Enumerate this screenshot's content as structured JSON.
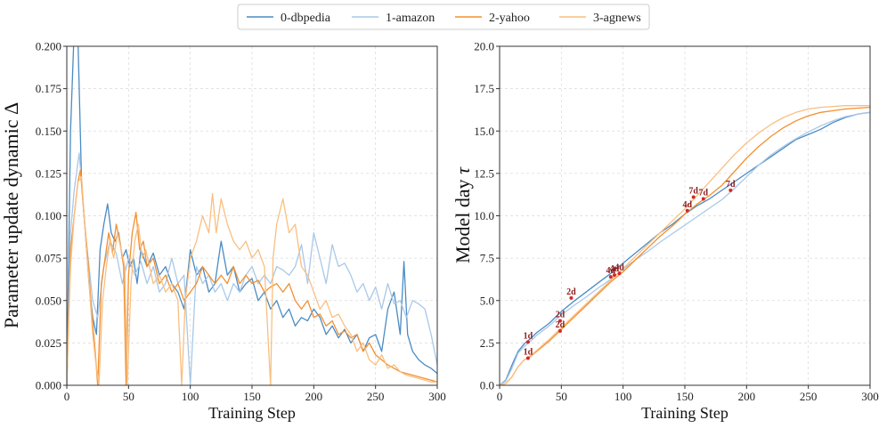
{
  "legend": {
    "entries": [
      {
        "label": "0-dbpedia",
        "color": "#4a8bc4"
      },
      {
        "label": "1-amazon",
        "color": "#a9c8e8"
      },
      {
        "label": "2-yahoo",
        "color": "#f28f2f"
      },
      {
        "label": "3-agnews",
        "color": "#f9bf80"
      }
    ]
  },
  "chart_data": [
    {
      "type": "line",
      "xlabel": "Training Step",
      "ylabel": "Parameter update dynamic Δ",
      "xlim": [
        0,
        300
      ],
      "ylim": [
        0,
        0.2
      ],
      "xticks": [
        "0",
        "50",
        "100",
        "150",
        "200",
        "250",
        "300"
      ],
      "yticks": [
        "0.000",
        "0.025",
        "0.050",
        "0.075",
        "0.100",
        "0.125",
        "0.150",
        "0.175",
        "0.200"
      ],
      "grid": true,
      "series": [
        {
          "name": "0-dbpedia",
          "color": "#4a8bc4",
          "x": [
            0,
            3,
            6,
            9,
            12,
            15,
            18,
            21,
            24,
            27,
            30,
            33,
            36,
            39,
            42,
            45,
            48,
            51,
            54,
            57,
            60,
            65,
            70,
            75,
            80,
            85,
            90,
            95,
            100,
            105,
            110,
            115,
            120,
            125,
            130,
            135,
            140,
            145,
            150,
            155,
            160,
            165,
            170,
            175,
            180,
            185,
            190,
            195,
            200,
            205,
            210,
            215,
            220,
            225,
            230,
            235,
            240,
            245,
            250,
            255,
            260,
            265,
            270,
            273,
            276,
            280,
            285,
            290,
            295,
            300
          ],
          "y": [
            0.0,
            0.15,
            0.21,
            0.205,
            0.12,
            0.09,
            0.06,
            0.04,
            0.03,
            0.08,
            0.095,
            0.107,
            0.09,
            0.085,
            0.09,
            0.075,
            0.08,
            0.07,
            0.075,
            0.06,
            0.08,
            0.07,
            0.078,
            0.065,
            0.07,
            0.06,
            0.055,
            0.045,
            0.08,
            0.065,
            0.07,
            0.055,
            0.06,
            0.085,
            0.065,
            0.07,
            0.055,
            0.06,
            0.063,
            0.05,
            0.055,
            0.045,
            0.05,
            0.04,
            0.045,
            0.035,
            0.04,
            0.038,
            0.045,
            0.04,
            0.03,
            0.035,
            0.028,
            0.033,
            0.025,
            0.03,
            0.02,
            0.028,
            0.03,
            0.02,
            0.045,
            0.055,
            0.03,
            0.073,
            0.03,
            0.02,
            0.015,
            0.012,
            0.01,
            0.007
          ]
        },
        {
          "name": "1-amazon",
          "color": "#a9c8e8",
          "x": [
            0,
            3,
            6,
            10,
            12,
            15,
            18,
            21,
            25,
            30,
            35,
            40,
            45,
            50,
            55,
            60,
            65,
            70,
            75,
            80,
            85,
            90,
            95,
            100,
            105,
            110,
            115,
            120,
            125,
            130,
            135,
            140,
            145,
            150,
            155,
            160,
            165,
            170,
            175,
            180,
            185,
            190,
            195,
            200,
            205,
            210,
            215,
            220,
            225,
            230,
            235,
            240,
            245,
            250,
            255,
            260,
            265,
            270,
            275,
            280,
            285,
            290,
            295,
            300
          ],
          "y": [
            0.0,
            0.09,
            0.115,
            0.137,
            0.12,
            0.09,
            0.07,
            0.05,
            0.04,
            0.07,
            0.085,
            0.078,
            0.06,
            0.075,
            0.065,
            0.073,
            0.06,
            0.07,
            0.055,
            0.06,
            0.075,
            0.06,
            0.065,
            0.0,
            0.07,
            0.06,
            0.065,
            0.055,
            0.06,
            0.05,
            0.06,
            0.055,
            0.065,
            0.07,
            0.06,
            0.065,
            0.06,
            0.07,
            0.068,
            0.065,
            0.07,
            0.083,
            0.06,
            0.09,
            0.075,
            0.06,
            0.083,
            0.07,
            0.072,
            0.065,
            0.055,
            0.06,
            0.05,
            0.058,
            0.045,
            0.06,
            0.048,
            0.05,
            0.04,
            0.05,
            0.048,
            0.045,
            0.03,
            0.012
          ]
        },
        {
          "name": "2-yahoo",
          "color": "#f28f2f",
          "x": [
            0,
            3,
            6,
            9,
            11,
            14,
            17,
            20,
            23,
            25,
            28,
            31,
            34,
            37,
            40,
            43,
            46,
            48,
            50,
            53,
            56,
            59,
            62,
            65,
            70,
            75,
            80,
            85,
            90,
            95,
            100,
            105,
            110,
            115,
            120,
            125,
            130,
            135,
            140,
            145,
            150,
            155,
            160,
            165,
            170,
            175,
            180,
            185,
            190,
            195,
            200,
            205,
            210,
            215,
            220,
            225,
            230,
            235,
            240,
            245,
            250,
            255,
            260,
            265,
            270,
            275,
            280,
            285,
            290,
            295,
            300
          ],
          "y": [
            0.0,
            0.08,
            0.1,
            0.12,
            0.127,
            0.1,
            0.075,
            0.045,
            0.02,
            0.0,
            0.06,
            0.075,
            0.09,
            0.078,
            0.095,
            0.085,
            0.07,
            0.0,
            0.065,
            0.09,
            0.102,
            0.08,
            0.085,
            0.07,
            0.075,
            0.06,
            0.065,
            0.055,
            0.06,
            0.05,
            0.055,
            0.06,
            0.07,
            0.065,
            0.06,
            0.065,
            0.06,
            0.07,
            0.06,
            0.065,
            0.06,
            0.062,
            0.055,
            0.058,
            0.06,
            0.055,
            0.06,
            0.05,
            0.045,
            0.05,
            0.04,
            0.042,
            0.035,
            0.038,
            0.03,
            0.032,
            0.028,
            0.03,
            0.02,
            0.025,
            0.018,
            0.015,
            0.012,
            0.01,
            0.008,
            0.007,
            0.006,
            0.005,
            0.004,
            0.003,
            0.002
          ]
        },
        {
          "name": "3-agnews",
          "color": "#f9bf80",
          "x": [
            0,
            3,
            6,
            9,
            12,
            15,
            18,
            21,
            24,
            26,
            29,
            32,
            35,
            38,
            41,
            44,
            47,
            49,
            52,
            55,
            58,
            61,
            64,
            67,
            70,
            75,
            80,
            85,
            90,
            93,
            96,
            100,
            105,
            110,
            115,
            118,
            121,
            125,
            130,
            135,
            140,
            145,
            150,
            155,
            160,
            165,
            167,
            170,
            175,
            180,
            185,
            190,
            195,
            200,
            205,
            210,
            215,
            220,
            225,
            230,
            235,
            240,
            245,
            250,
            255,
            260,
            265,
            270,
            275,
            280,
            285,
            290,
            295,
            300
          ],
          "y": [
            0.0,
            0.07,
            0.1,
            0.12,
            0.123,
            0.09,
            0.06,
            0.03,
            0.01,
            0.0,
            0.05,
            0.07,
            0.085,
            0.075,
            0.09,
            0.08,
            0.07,
            0.0,
            0.06,
            0.085,
            0.095,
            0.075,
            0.08,
            0.07,
            0.06,
            0.065,
            0.055,
            0.06,
            0.05,
            0.0,
            0.05,
            0.075,
            0.085,
            0.1,
            0.09,
            0.113,
            0.09,
            0.11,
            0.095,
            0.085,
            0.08,
            0.085,
            0.075,
            0.08,
            0.07,
            0.0,
            0.075,
            0.095,
            0.11,
            0.09,
            0.095,
            0.07,
            0.065,
            0.055,
            0.045,
            0.05,
            0.04,
            0.042,
            0.035,
            0.03,
            0.02,
            0.025,
            0.015,
            0.012,
            0.018,
            0.01,
            0.012,
            0.008,
            0.006,
            0.005,
            0.004,
            0.003,
            0.002,
            0.002
          ]
        }
      ]
    },
    {
      "type": "line",
      "xlabel": "Training Step",
      "ylabel": "Model day",
      "ylabel_symbol": "τ",
      "xlim": [
        0,
        300
      ],
      "ylim": [
        0,
        20
      ],
      "xticks": [
        "0",
        "50",
        "100",
        "150",
        "200",
        "250",
        "300"
      ],
      "yticks": [
        "0.0",
        "2.5",
        "5.0",
        "7.5",
        "10.0",
        "12.5",
        "15.0",
        "17.5",
        "20.0"
      ],
      "grid": true,
      "series": [
        {
          "name": "0-dbpedia",
          "color": "#4a8bc4",
          "x": [
            0,
            5,
            10,
            15,
            20,
            25,
            30,
            40,
            50,
            60,
            70,
            80,
            90,
            100,
            110,
            120,
            130,
            140,
            150,
            160,
            170,
            180,
            190,
            200,
            210,
            220,
            230,
            240,
            250,
            260,
            270,
            280,
            290,
            300
          ],
          "y": [
            0,
            0.3,
            1.2,
            2.0,
            2.45,
            2.75,
            3.1,
            3.65,
            4.35,
            4.95,
            5.5,
            6.05,
            6.6,
            7.2,
            7.8,
            8.4,
            9.0,
            9.5,
            10.1,
            10.6,
            11.0,
            11.5,
            12.0,
            12.5,
            13.0,
            13.5,
            14.0,
            14.5,
            14.8,
            15.1,
            15.5,
            15.8,
            16.0,
            16.1
          ]
        },
        {
          "name": "1-amazon",
          "color": "#a9c8e8",
          "x": [
            0,
            5,
            10,
            15,
            20,
            25,
            30,
            40,
            50,
            60,
            70,
            80,
            90,
            100,
            110,
            120,
            130,
            140,
            150,
            160,
            170,
            180,
            190,
            200,
            210,
            220,
            230,
            240,
            250,
            260,
            270,
            280,
            290,
            300
          ],
          "y": [
            0,
            0.25,
            1.0,
            1.9,
            2.3,
            2.6,
            2.95,
            3.5,
            4.15,
            4.7,
            5.2,
            5.75,
            6.25,
            6.85,
            7.4,
            7.9,
            8.45,
            8.95,
            9.45,
            9.95,
            10.45,
            10.95,
            11.6,
            12.3,
            13.0,
            13.6,
            14.1,
            14.55,
            14.95,
            15.3,
            15.6,
            15.85,
            16.0,
            16.1
          ]
        },
        {
          "name": "2-yahoo",
          "color": "#f28f2f",
          "x": [
            0,
            5,
            10,
            15,
            20,
            25,
            30,
            40,
            50,
            60,
            70,
            80,
            90,
            100,
            110,
            120,
            130,
            140,
            150,
            160,
            170,
            180,
            190,
            200,
            210,
            220,
            230,
            240,
            250,
            260,
            270,
            280,
            290,
            300
          ],
          "y": [
            0,
            0.1,
            0.5,
            1.1,
            1.5,
            1.7,
            2.0,
            2.6,
            3.3,
            4.0,
            4.7,
            5.4,
            6.1,
            6.7,
            7.4,
            8.1,
            8.8,
            9.4,
            10.1,
            10.7,
            11.2,
            11.8,
            12.6,
            13.4,
            14.1,
            14.7,
            15.2,
            15.6,
            15.9,
            16.1,
            16.2,
            16.3,
            16.35,
            16.4
          ]
        },
        {
          "name": "3-agnews",
          "color": "#f9bf80",
          "x": [
            0,
            5,
            10,
            15,
            20,
            25,
            30,
            40,
            50,
            60,
            70,
            80,
            90,
            100,
            110,
            120,
            130,
            140,
            150,
            160,
            170,
            180,
            190,
            200,
            210,
            220,
            230,
            240,
            250,
            260,
            270,
            280,
            290,
            300
          ],
          "y": [
            0,
            0.1,
            0.5,
            1.1,
            1.5,
            1.75,
            2.05,
            2.7,
            3.4,
            4.1,
            4.8,
            5.5,
            6.2,
            6.9,
            7.6,
            8.3,
            9.0,
            9.7,
            10.4,
            11.2,
            12.0,
            12.8,
            13.6,
            14.3,
            14.9,
            15.4,
            15.8,
            16.1,
            16.3,
            16.4,
            16.45,
            16.5,
            16.5,
            16.5
          ]
        }
      ],
      "annotations": [
        {
          "label": "1d",
          "x": 23,
          "y": 2.55
        },
        {
          "label": "1d",
          "x": 23,
          "y": 1.6
        },
        {
          "label": "2d",
          "x": 49,
          "y": 3.8
        },
        {
          "label": "2d",
          "x": 49,
          "y": 3.2
        },
        {
          "label": "2d",
          "x": 58,
          "y": 5.15
        },
        {
          "label": "4d",
          "x": 90,
          "y": 6.4
        },
        {
          "label": "4d",
          "x": 93,
          "y": 6.5
        },
        {
          "label": "4d",
          "x": 97,
          "y": 6.6
        },
        {
          "label": "4d",
          "x": 152,
          "y": 10.3
        },
        {
          "label": "7d",
          "x": 157,
          "y": 11.1
        },
        {
          "label": "7d",
          "x": 165,
          "y": 11.0
        },
        {
          "label": "7d",
          "x": 187,
          "y": 11.5
        }
      ]
    }
  ]
}
